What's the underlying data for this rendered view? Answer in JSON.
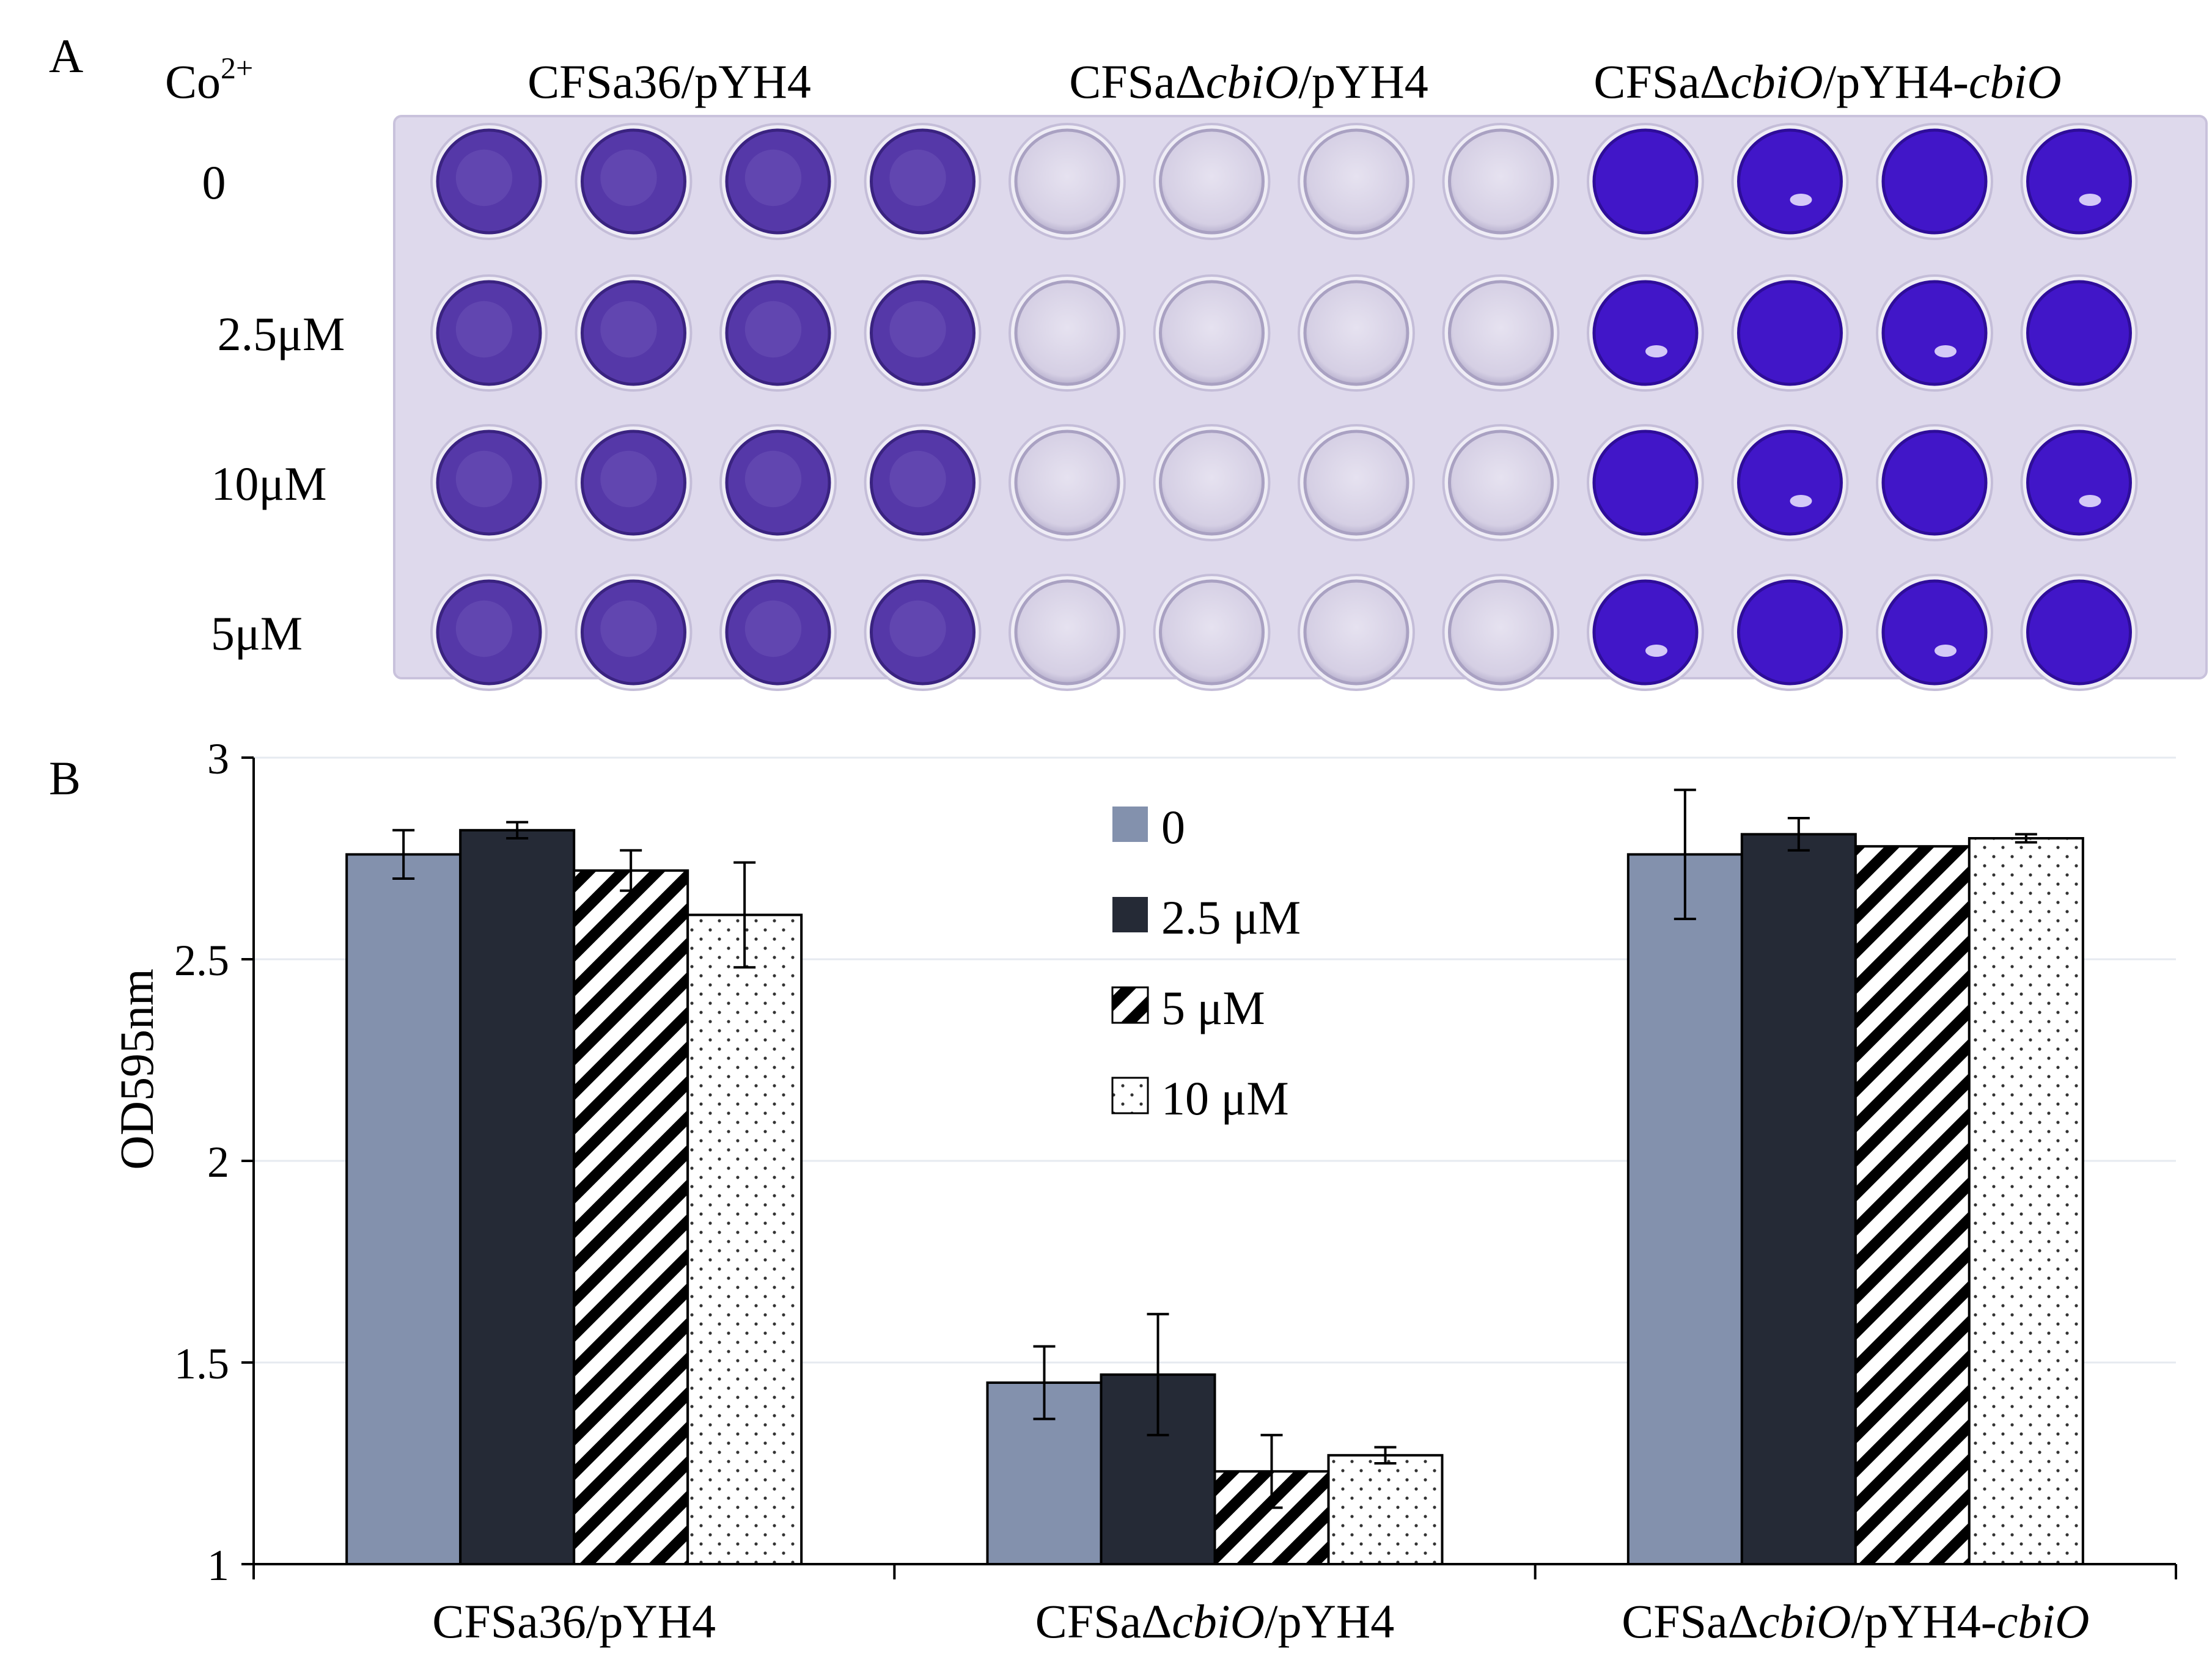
{
  "panel_a": {
    "label": "A",
    "row_header_base": "Co",
    "row_header_sup": "2+",
    "columns": [
      {
        "parts": [
          {
            "t": "CFSa36/pYH4",
            "i": false
          }
        ],
        "state": "stained"
      },
      {
        "parts": [
          {
            "t": "CFSaΔ",
            "i": false
          },
          {
            "t": "cbiO",
            "i": true
          },
          {
            "t": "/pYH4",
            "i": false
          }
        ],
        "state": "clear"
      },
      {
        "parts": [
          {
            "t": "CFSaΔ",
            "i": false
          },
          {
            "t": "cbiO",
            "i": true
          },
          {
            "t": "/pYH4-",
            "i": false
          },
          {
            "t": "cbiO",
            "i": true
          }
        ],
        "state": "intense"
      }
    ],
    "rows": [
      "0",
      "2.5μM",
      "10μM",
      "5μM"
    ],
    "wells_per_group": 4,
    "colors": {
      "plate": "#ded9ec",
      "well_clear": "#d7d2e6",
      "well_stained": "#5538a8",
      "well_intense": "#4116c8"
    }
  },
  "chart_data": {
    "type": "bar",
    "panel_label": "B",
    "title": "",
    "xlabel": "",
    "ylabel": "OD595nm",
    "ylim": [
      1,
      3
    ],
    "yticks": [
      "1",
      "1.5",
      "2",
      "2.5",
      "3"
    ],
    "categories": [
      "CFSa36/pYH4",
      "CFSaΔcbiO/pYH4",
      "CFSaΔcbiO/pYH4-cbiO"
    ],
    "category_parts": [
      [
        {
          "t": "CFSa36/pYH4",
          "i": false
        }
      ],
      [
        {
          "t": "CFSaΔ",
          "i": false
        },
        {
          "t": "cbiO",
          "i": true
        },
        {
          "t": "/pYH4",
          "i": false
        }
      ],
      [
        {
          "t": "CFSaΔ",
          "i": false
        },
        {
          "t": "cbiO",
          "i": true
        },
        {
          "t": "/pYH4-",
          "i": false
        },
        {
          "t": "cbiO",
          "i": true
        }
      ]
    ],
    "series": [
      {
        "name": "0",
        "fill": "solid",
        "color": "#8391ad",
        "values": [
          2.76,
          1.45,
          2.76
        ],
        "errors": [
          0.06,
          0.09,
          0.16
        ]
      },
      {
        "name": "2.5 μM",
        "fill": "solid",
        "color": "#252a36",
        "values": [
          2.82,
          1.47,
          2.81
        ],
        "errors": [
          0.02,
          0.15,
          0.04
        ]
      },
      {
        "name": "5 μM",
        "fill": "hatch",
        "color": "#000000",
        "values": [
          2.72,
          1.23,
          2.78
        ],
        "errors": [
          0.05,
          0.09,
          0.0
        ]
      },
      {
        "name": "10 μM",
        "fill": "dots",
        "color": "#000000",
        "values": [
          2.61,
          1.27,
          2.8
        ],
        "errors": [
          0.13,
          0.02,
          0.01
        ]
      }
    ],
    "grid": true,
    "legend_position": "top-center"
  }
}
